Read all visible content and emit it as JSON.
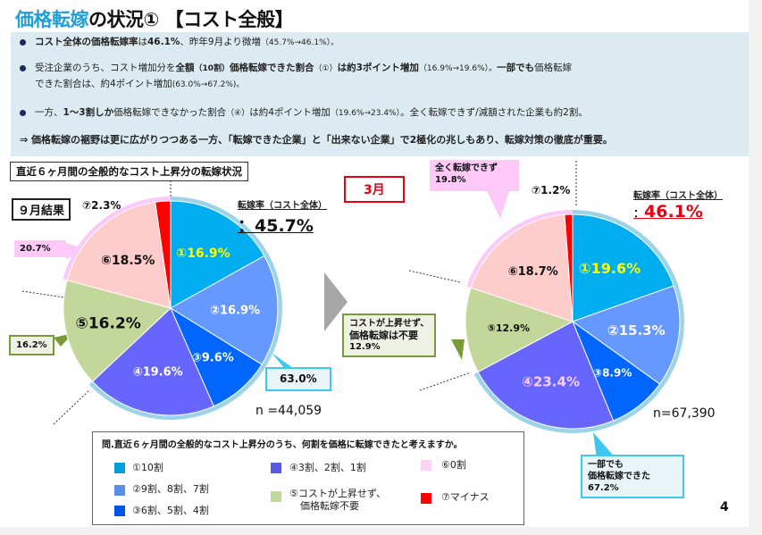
{
  "title": {
    "accent": "価格転嫁",
    "rest": "の状況① 【コスト全般】"
  },
  "summary": {
    "bullet1": {
      "bold": "コスト全体の価格転嫁率",
      "t1": "は",
      "bold2": "46.1%",
      "t2": "、昨年9月より微増",
      "small": "（45.7%→46.1%）。"
    },
    "bullet2": {
      "t1": "受注企業のうち、コスト増加分を",
      "bold1": "全額",
      "small1": "（10割）",
      "bold2": "価格転嫁できた割合",
      "small2": "（①）",
      "bold3": "は約3ポイント増加",
      "small3": "（16.9%→19.6%）。",
      "bold4": "一部でも",
      "t2": "価格転嫁",
      "line2": "できた割合は、約4ポイント増加",
      "small4": "(63.0%→67.2%)。"
    },
    "bullet3": {
      "t1": "一方、",
      "bold1": "1～3割しか",
      "t2": "価格転嫁できなかった割合",
      "small1": "（④）",
      "t3": "は約4ポイント増加",
      "small2": "（19.6%→23.4%）",
      "t4": "。全く転嫁できず/減額された企業も約2割。"
    },
    "conclusion": "⇒  価格転嫁の裾野は更に広がりつつある一方、「転嫁できた企業」と「出来ない企業」で2極化の兆しもあり、転嫁対策の徹底が重要。"
  },
  "section_label": "直近６ヶ月間の全般的なコスト上昇分の転嫁状況",
  "left_panel": {
    "month": "９月結果",
    "rate_label": "転嫁率（コスト全体）",
    "rate_value": "：45.7%",
    "callouts": {
      "zero_or_minus": "20.7%",
      "no_rise": "16.2%",
      "partial": "63.0%"
    },
    "n": "n =44,059"
  },
  "right_panel": {
    "month": "3月",
    "rate_label": "転嫁率（コスト全体）",
    "rate_value": "46.1%",
    "rate_prefix": "：",
    "callouts": {
      "zero_line1": "全く転嫁できず",
      "zero_line2": "19.8%",
      "no_rise_line1": "コストが上昇せず、",
      "no_rise_line2": "価格転嫁は不要",
      "no_rise_line3": "12.9%",
      "partial_line1": "一部でも",
      "partial_line2": "価格転嫁できた",
      "partial_line3": "67.2%"
    },
    "n": "n=67,390"
  },
  "legend": {
    "question": "問.直近６ヶ月間の全般的なコスト上昇分のうち、何割を価格に転嫁できたと考えますか。",
    "items": [
      {
        "label": "①10割",
        "color": "#009fd9"
      },
      {
        "label": "②9割、8割、7割",
        "color": "#5b8ee6"
      },
      {
        "label": "③6割、5割、4割",
        "color": "#0055e6"
      },
      {
        "label": "④3割、2割、1割",
        "color": "#5b5be0"
      },
      {
        "label": "⑤コストが上昇せず、",
        "label2": "価格転嫁不要",
        "color": "#c3d69b"
      },
      {
        "label": "⑥0割",
        "color": "#fcd0f7"
      },
      {
        "label": "⑦マイナス",
        "color": "#ff0000"
      }
    ]
  },
  "page_number": "4",
  "chart_data": [
    {
      "type": "pie",
      "title": "９月結果",
      "categories": [
        "①10割",
        "②9割、8割、7割",
        "③6割、5割、4割",
        "④3割、2割、1割",
        "⑤コストが上昇せず、価格転嫁不要",
        "⑥0割",
        "⑦マイナス"
      ],
      "values": [
        16.9,
        16.9,
        9.6,
        19.6,
        16.2,
        18.5,
        2.3
      ],
      "labels": [
        "①16.9%",
        "②16.9%",
        "③9.6%",
        "④19.6%",
        "⑤16.2%",
        "⑥18.5%",
        "⑦2.3%"
      ],
      "colors": [
        "#00aeef",
        "#6699ff",
        "#0066ff",
        "#6666ff",
        "#c4d79b",
        "#ffcccc",
        "#ff0000"
      ],
      "label_colors": [
        "#ffff00",
        "#ffffff",
        "#ffffff",
        "#ffffff",
        "#111111",
        "#111111",
        "#111111"
      ],
      "n": 44059,
      "pass_through_rate": 45.7
    },
    {
      "type": "pie",
      "title": "3月",
      "categories": [
        "①10割",
        "②9割、8割、7割",
        "③6割、5割、4割",
        "④3割、2割、1割",
        "⑤コストが上昇せず、価格転嫁不要",
        "⑥0割",
        "⑦マイナス"
      ],
      "values": [
        19.6,
        15.3,
        8.9,
        23.4,
        12.9,
        18.7,
        1.2
      ],
      "labels": [
        "①19.6%",
        "②15.3%",
        "③8.9%",
        "④23.4%",
        "⑤12.9%",
        "⑥18.7%",
        "⑦1.2%"
      ],
      "colors": [
        "#00aeef",
        "#6699ff",
        "#0066ff",
        "#6666ff",
        "#c4d79b",
        "#ffcccc",
        "#ff0000"
      ],
      "label_colors": [
        "#ffff00",
        "#ffffff",
        "#ffffff",
        "#ffccff",
        "#111111",
        "#111111",
        "#111111"
      ],
      "n": 67390,
      "pass_through_rate": 46.1
    }
  ]
}
